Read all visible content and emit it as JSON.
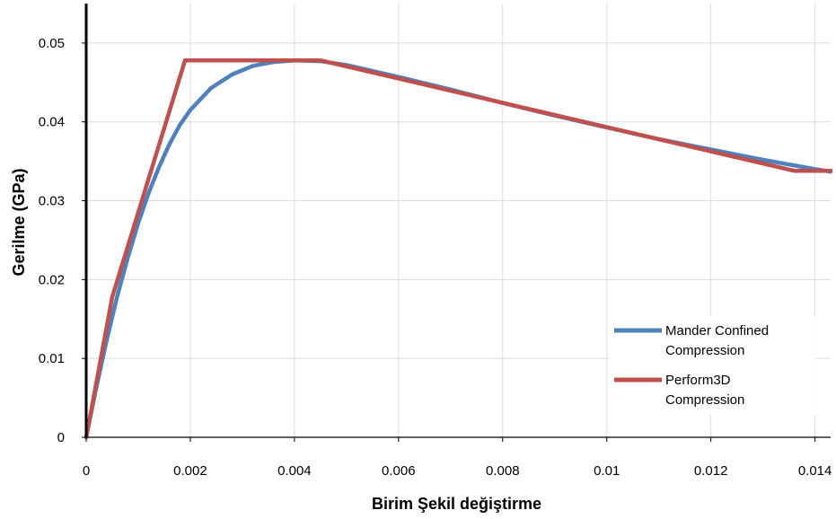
{
  "chart_data": {
    "type": "line",
    "title": "",
    "xlabel": "Birim Şekil değiştirme",
    "ylabel": "Gerilme (GPa)",
    "xlim": [
      0,
      0.0143
    ],
    "ylim": [
      0,
      0.055
    ],
    "x_ticks": [
      0,
      0.002,
      0.004,
      0.006,
      0.008,
      0.01,
      0.012,
      0.014
    ],
    "x_tick_labels": [
      "0",
      "0.002",
      "0.004",
      "0.006",
      "0.008",
      "0.01",
      "0.012",
      "0.014"
    ],
    "y_ticks": [
      0,
      0.01,
      0.02,
      0.03,
      0.04,
      0.05
    ],
    "y_tick_labels": [
      "0",
      "0.01",
      "0.02",
      "0.03",
      "0.04",
      "0.05"
    ],
    "grid": true,
    "legend": "bottom-right",
    "series": [
      {
        "name": "Mander Confined Compression",
        "color": "#4f81bd",
        "x": [
          0,
          0.0002,
          0.0004,
          0.0006,
          0.0008,
          0.001,
          0.0012,
          0.0014,
          0.0016,
          0.0018,
          0.002,
          0.0024,
          0.0028,
          0.0032,
          0.0036,
          0.004,
          0.0045,
          0.005,
          0.006,
          0.007,
          0.008,
          0.009,
          0.01,
          0.011,
          0.012,
          0.013,
          0.014,
          0.0143
        ],
        "y": [
          0,
          0.0065,
          0.0125,
          0.018,
          0.0228,
          0.0272,
          0.031,
          0.0343,
          0.0372,
          0.0396,
          0.0415,
          0.0443,
          0.046,
          0.0471,
          0.0476,
          0.0478,
          0.0477,
          0.0472,
          0.0457,
          0.0441,
          0.0424,
          0.0408,
          0.0393,
          0.0378,
          0.0365,
          0.0352,
          0.034,
          0.0337
        ]
      },
      {
        "name": "Perform3D Compression",
        "color": "#c0504d",
        "x": [
          0,
          0.0005,
          0.0019,
          0.0045,
          0.0136,
          0.0143
        ],
        "y": [
          0,
          0.0178,
          0.0478,
          0.0478,
          0.0338,
          0.0338
        ]
      }
    ]
  }
}
